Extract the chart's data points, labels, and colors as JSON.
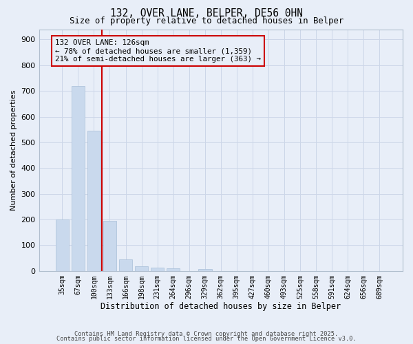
{
  "title1": "132, OVER LANE, BELPER, DE56 0HN",
  "title2": "Size of property relative to detached houses in Belper",
  "xlabel": "Distribution of detached houses by size in Belper",
  "ylabel": "Number of detached properties",
  "categories": [
    "35sqm",
    "67sqm",
    "100sqm",
    "133sqm",
    "166sqm",
    "198sqm",
    "231sqm",
    "264sqm",
    "296sqm",
    "329sqm",
    "362sqm",
    "395sqm",
    "427sqm",
    "460sqm",
    "493sqm",
    "525sqm",
    "558sqm",
    "591sqm",
    "624sqm",
    "656sqm",
    "689sqm"
  ],
  "values": [
    200,
    720,
    545,
    195,
    45,
    18,
    13,
    9,
    0,
    8,
    0,
    0,
    0,
    0,
    0,
    0,
    0,
    0,
    0,
    0,
    0
  ],
  "bar_color": "#c9d9ed",
  "bar_edge_color": "#a8bfd8",
  "vline_x_idx": 2.5,
  "vline_color": "#cc0000",
  "annotation_line1": "132 OVER LANE: 126sqm",
  "annotation_line2": "← 78% of detached houses are smaller (1,359)",
  "annotation_line3": "21% of semi-detached houses are larger (363) →",
  "annotation_color": "#cc0000",
  "ylim": [
    0,
    940
  ],
  "yticks": [
    0,
    100,
    200,
    300,
    400,
    500,
    600,
    700,
    800,
    900
  ],
  "grid_color": "#ccd6e8",
  "bg_color": "#e8eef8",
  "footer1": "Contains HM Land Registry data © Crown copyright and database right 2025.",
  "footer2": "Contains public sector information licensed under the Open Government Licence v3.0."
}
